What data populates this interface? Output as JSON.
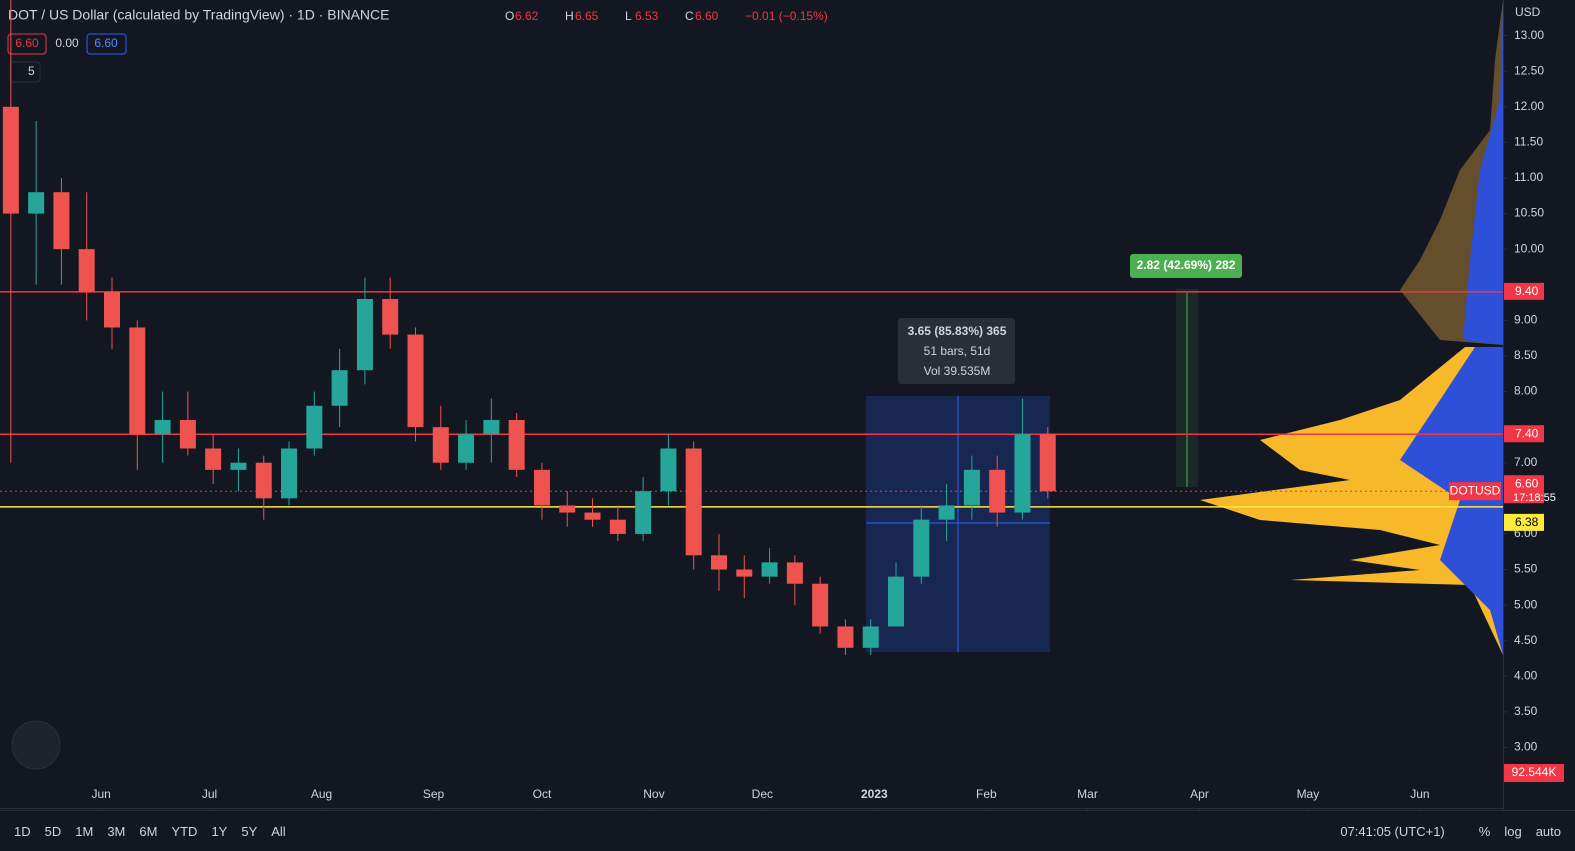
{
  "header": {
    "title": "DOT / US Dollar (calculated by TradingView) · 1D · BINANCE",
    "ohlc": [
      [
        "O",
        "6.62"
      ],
      [
        "H",
        "6.65"
      ],
      [
        "L",
        "6.53"
      ],
      [
        "C",
        "6.60"
      ]
    ],
    "change": "−0.01 (−0.15%)",
    "badges": [
      "6.60",
      "0.00",
      "6.60"
    ],
    "indicator_count": "5"
  },
  "chart_data": {
    "type": "candlestick",
    "x": [
      -25,
      -18,
      -11,
      -4,
      3,
      10,
      17,
      24,
      31,
      38,
      45,
      52,
      59,
      66,
      73,
      80,
      87,
      94,
      101,
      108,
      115,
      122,
      129,
      136,
      143,
      150,
      157,
      164,
      171,
      178,
      185,
      192,
      199,
      206,
      213,
      220,
      227,
      234,
      241,
      248,
      255,
      262
    ],
    "open": [
      12.0,
      10.5,
      10.8,
      10.0,
      9.4,
      8.9,
      7.4,
      7.6,
      7.2,
      6.9,
      7.0,
      6.5,
      7.2,
      7.8,
      8.3,
      9.3,
      8.8,
      7.5,
      7.0,
      7.4,
      7.6,
      6.9,
      6.4,
      6.3,
      6.2,
      6.0,
      6.6,
      7.2,
      5.7,
      5.5,
      5.4,
      5.6,
      5.3,
      4.7,
      4.4,
      4.7,
      5.4,
      6.2,
      6.4,
      6.9,
      6.3,
      7.4
    ],
    "high": [
      13.5,
      11.8,
      11.0,
      10.8,
      9.6,
      9.0,
      8.0,
      8.0,
      7.4,
      7.2,
      7.1,
      7.3,
      8.0,
      8.6,
      9.6,
      9.6,
      8.9,
      7.8,
      7.6,
      7.9,
      7.7,
      7.0,
      6.6,
      6.5,
      6.4,
      6.8,
      7.4,
      7.3,
      6.0,
      5.7,
      5.8,
      5.7,
      5.4,
      4.8,
      4.8,
      5.6,
      6.4,
      6.7,
      7.1,
      7.1,
      7.9,
      7.5
    ],
    "low": [
      7.0,
      9.5,
      9.5,
      9.0,
      8.6,
      6.9,
      7.0,
      7.1,
      6.7,
      6.6,
      6.2,
      6.4,
      7.1,
      7.5,
      8.1,
      8.6,
      7.3,
      6.9,
      6.9,
      7.0,
      6.8,
      6.2,
      6.1,
      6.1,
      5.9,
      5.9,
      6.4,
      5.5,
      5.2,
      5.1,
      5.3,
      5.0,
      4.6,
      4.3,
      4.3,
      4.7,
      5.3,
      5.9,
      6.2,
      6.1,
      6.2,
      6.5
    ],
    "close": [
      10.5,
      10.8,
      10.0,
      9.4,
      8.9,
      7.4,
      7.6,
      7.2,
      6.9,
      7.0,
      6.5,
      7.2,
      7.8,
      8.3,
      9.3,
      8.8,
      7.5,
      7.0,
      7.4,
      7.6,
      6.9,
      6.4,
      6.3,
      6.2,
      6.0,
      6.6,
      7.2,
      5.7,
      5.5,
      5.4,
      5.6,
      5.3,
      4.7,
      4.4,
      4.7,
      5.4,
      6.2,
      6.4,
      6.9,
      6.3,
      7.4,
      6.6
    ],
    "up_color": "#26a69a",
    "down_color": "#ef5350",
    "xlim": [
      -28,
      388
    ],
    "ylim": [
      2.15,
      13.5
    ],
    "xticks": [
      {
        "value": 0,
        "label": "Jun"
      },
      {
        "value": 30,
        "label": "Jul"
      },
      {
        "value": 61,
        "label": "Aug"
      },
      {
        "value": 92,
        "label": "Sep"
      },
      {
        "value": 122,
        "label": "Oct"
      },
      {
        "value": 153,
        "label": "Nov"
      },
      {
        "value": 183,
        "label": "Dec"
      },
      {
        "value": 214,
        "label": "2023"
      },
      {
        "value": 245,
        "label": "Feb"
      },
      {
        "value": 273,
        "label": "Mar"
      },
      {
        "value": 304,
        "label": "Apr"
      },
      {
        "value": 334,
        "label": "May"
      },
      {
        "value": 365,
        "label": "Jun"
      }
    ],
    "yticks": [
      {
        "value": 13,
        "label": "13.00"
      },
      {
        "value": 12.5,
        "label": "12.50"
      },
      {
        "value": 12,
        "label": "12.00"
      },
      {
        "value": 11.5,
        "label": "11.50"
      },
      {
        "value": 11,
        "label": "11.00"
      },
      {
        "value": 10.5,
        "label": "10.50"
      },
      {
        "value": 10,
        "label": "10.00"
      },
      {
        "value": 9,
        "label": "9.00"
      },
      {
        "value": 8.5,
        "label": "8.50"
      },
      {
        "value": 8,
        "label": "8.00"
      },
      {
        "value": 7,
        "label": "7.00"
      },
      {
        "value": 6,
        "label": "6.00"
      },
      {
        "value": 5.5,
        "label": "5.50"
      },
      {
        "value": 5,
        "label": "5.00"
      },
      {
        "value": 4.5,
        "label": "4.50"
      },
      {
        "value": 4,
        "label": "4.00"
      },
      {
        "value": 3.5,
        "label": "3.50"
      },
      {
        "value": 3,
        "label": "3.00"
      }
    ],
    "levels": [
      {
        "value": 9.4,
        "label": "9.40",
        "color": "#f23645"
      },
      {
        "value": 7.4,
        "label": "7.40",
        "color": "#f23645"
      },
      {
        "value": 6.38,
        "label": "6.38",
        "color": "#ffeb3b"
      },
      {
        "value": 6.6,
        "label": "6.60",
        "color": "#f23645",
        "symbol": "DOTUSD",
        "countdown": "17:18:55"
      }
    ],
    "currency": "USD",
    "volume_label": "92.544K",
    "measure_box": [
      "3.65 (85.83%) 365",
      "51 bars, 51d",
      "Vol 39.535M"
    ],
    "measure_arrow": "2.82 (42.69%) 282"
  },
  "footer": {
    "ranges": [
      "1D",
      "5D",
      "1M",
      "3M",
      "6M",
      "YTD",
      "1Y",
      "5Y",
      "All"
    ],
    "clock": "07:41:05 (UTC+1)",
    "options": [
      "%",
      "log",
      "auto"
    ]
  }
}
